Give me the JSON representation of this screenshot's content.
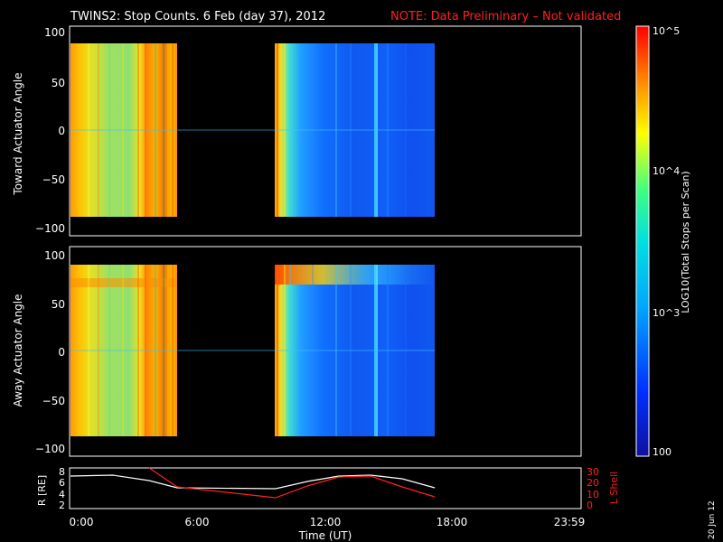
{
  "title": {
    "main": "TWINS2: Stop Counts.  6 Feb (day  37), 2012",
    "note": "NOTE: Data Preliminary – Not validated"
  },
  "stamp": "20 Jun 12",
  "colorbar": {
    "label": "LOG10(Total Stops per Scan)",
    "ticks": [
      "10^5",
      "10^4",
      "10^3",
      "100"
    ]
  },
  "chart_data": [
    {
      "type": "heatmap",
      "ylabel": "Toward Actuator Angle",
      "ylim": [
        -110,
        110
      ],
      "yticks": [
        "100",
        "50",
        "0",
        "−50",
        "−100"
      ],
      "x_time_ranges_UT": [
        [
          "00:00",
          "05:15"
        ],
        [
          "09:20",
          "17:10"
        ]
      ],
      "y_range_deg": [
        -90,
        90
      ],
      "color_scale": "log10, 100 to 10^5 total stops per scan"
    },
    {
      "type": "heatmap",
      "ylabel": "Away Actuator Angle",
      "ylim": [
        -110,
        110
      ],
      "yticks": [
        "100",
        "50",
        "0",
        "−50",
        "−100"
      ],
      "x_time_ranges_UT": [
        [
          "00:00",
          "05:15"
        ],
        [
          "09:20",
          "17:10"
        ]
      ],
      "y_range_deg": [
        -90,
        90
      ],
      "color_scale": "log10, 100 to 10^5 total stops per scan"
    },
    {
      "type": "line",
      "xlabel": "Time (UT)",
      "xticks": [
        "0:00",
        "6:00",
        "12:00",
        "18:00",
        "23:59"
      ],
      "ylabel_left": "R [RE]",
      "yticks_left": [
        "8",
        "6",
        "4",
        "2"
      ],
      "ylim_left": [
        2,
        8
      ],
      "ylabel_right": "L Shell",
      "yticks_right": [
        "30",
        "20",
        "10",
        "0"
      ],
      "ylim_right": [
        0,
        30
      ],
      "series": [
        {
          "name": "R [RE]",
          "color": "#ffffff",
          "x_hours": [
            0,
            2,
            4,
            5.25,
            9.33,
            11,
            12.5,
            14,
            15.5,
            17.17
          ],
          "values": [
            7.0,
            6.9,
            6.2,
            4.9,
            4.8,
            6.0,
            6.6,
            6.7,
            6.4,
            5.0
          ]
        },
        {
          "name": "L Shell",
          "color": "#ff2020",
          "x_hours": [
            3.5,
            5.25,
            9.33,
            11,
            12.5,
            14,
            15.5,
            17.17
          ],
          "values": [
            30,
            16,
            10,
            18,
            23,
            24,
            18,
            11
          ]
        }
      ]
    }
  ]
}
